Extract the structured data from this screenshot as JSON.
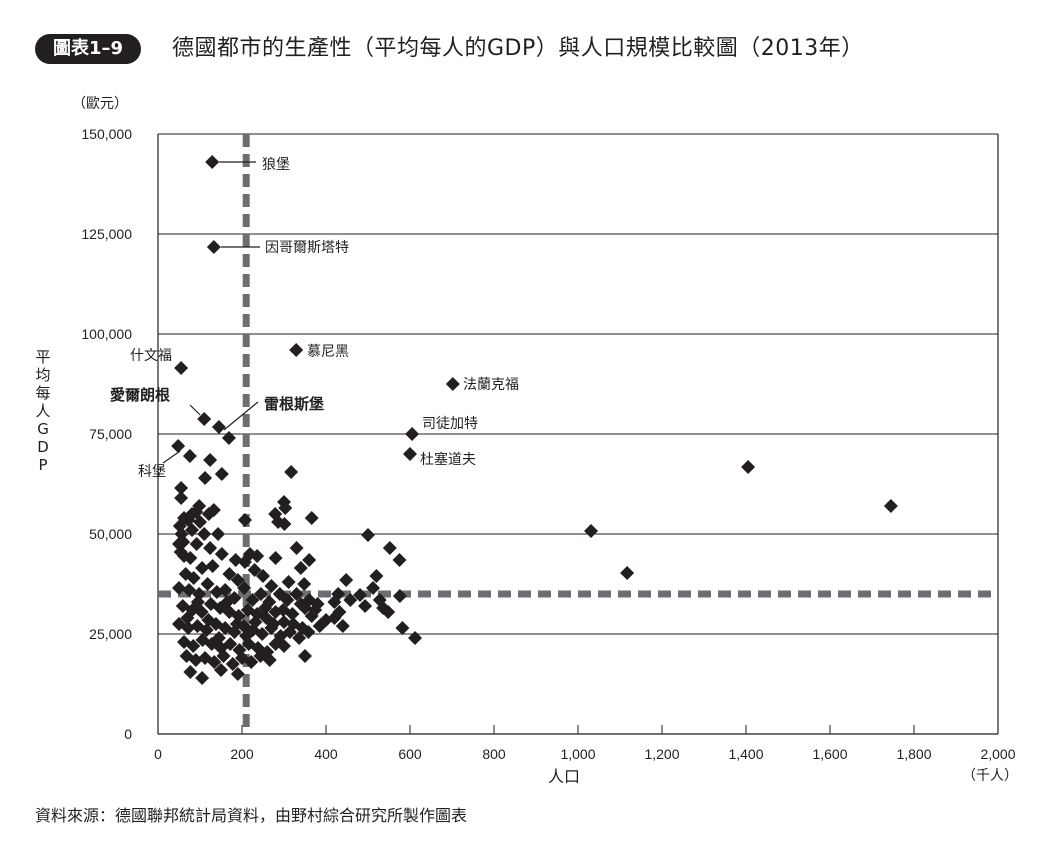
{
  "header": {
    "badge": "圖表1–9",
    "title": "德國都市的生產性（平均每人的GDP）與人口規模比較圖（2013年）"
  },
  "axes": {
    "y_unit": "（歐元）",
    "y_label": "平均每人GDP",
    "x_label": "人口",
    "x_unit": "（千人）"
  },
  "footer": {
    "source": "資料來源：德國聯邦統計局資料，由野村綜合研究所製作圖表"
  },
  "chart_data": {
    "type": "scatter",
    "title": "德國都市的生產性（平均每人的GDP）與人口規模比較圖（2013年）",
    "xlabel": "人口（千人）",
    "ylabel": "平均每人GDP（歐元）",
    "xlim": [
      0,
      2000
    ],
    "ylim": [
      0,
      150000
    ],
    "x_ticks": [
      0,
      200,
      400,
      600,
      800,
      1000,
      1200,
      1400,
      1600,
      1800,
      2000
    ],
    "x_tick_labels": [
      "0",
      "200",
      "400",
      "600",
      "800",
      "1,000",
      "1,200",
      "1,400",
      "1,600",
      "1,800",
      "2,000"
    ],
    "y_ticks": [
      0,
      25000,
      50000,
      75000,
      100000,
      125000,
      150000
    ],
    "y_tick_labels": [
      "0",
      "25,000",
      "50,000",
      "75,000",
      "100,000",
      "125,000",
      "150,000"
    ],
    "grid": "horizontal",
    "reference_lines": {
      "x": 210,
      "y": 35000,
      "style": "dashed",
      "color": "#6d6e71"
    },
    "marker": "diamond",
    "marker_color": "#231f20",
    "labeled_points": [
      {
        "name": "狼堡",
        "x": 129,
        "y": 143000,
        "bold": false
      },
      {
        "name": "因哥爾斯塔特",
        "x": 133,
        "y": 121750,
        "bold": false
      },
      {
        "name": "慕尼黑",
        "x": 329,
        "y": 96000,
        "bold": false
      },
      {
        "name": "什文福",
        "x": 55,
        "y": 91500,
        "bold": false
      },
      {
        "name": "法蘭克福",
        "x": 702,
        "y": 87500,
        "bold": false
      },
      {
        "name": "愛爾朗根",
        "x": 110,
        "y": 78750,
        "bold": true
      },
      {
        "name": "雷根斯堡",
        "x": 145,
        "y": 76750,
        "bold": true
      },
      {
        "name": "司徒加特",
        "x": 605,
        "y": 75000,
        "bold": false
      },
      {
        "name": "科堡",
        "x": 48,
        "y": 72000,
        "bold": false
      },
      {
        "name": "杜塞道夫",
        "x": 600,
        "y": 70000,
        "bold": false
      }
    ],
    "points": [
      [
        1031,
        50750
      ],
      [
        1117,
        40250
      ],
      [
        1405,
        66750
      ],
      [
        1745,
        57000
      ],
      [
        169,
        74000
      ],
      [
        76,
        69500
      ],
      [
        124,
        68500
      ],
      [
        152,
        65000
      ],
      [
        317,
        65500
      ],
      [
        112,
        64000
      ],
      [
        55,
        61500
      ],
      [
        55,
        59000
      ],
      [
        98,
        57000
      ],
      [
        133,
        56000
      ],
      [
        279,
        55000
      ],
      [
        366,
        54000
      ],
      [
        62,
        54000
      ],
      [
        52,
        52000
      ],
      [
        72,
        53500
      ],
      [
        207,
        53500
      ],
      [
        300,
        58000
      ],
      [
        303,
        56500
      ],
      [
        301,
        52500
      ],
      [
        286,
        53000
      ],
      [
        121,
        55000
      ],
      [
        100,
        53000
      ],
      [
        91,
        55500
      ],
      [
        81,
        55000
      ],
      [
        56,
        50000
      ],
      [
        60,
        48000
      ],
      [
        50,
        47500
      ],
      [
        54,
        45500
      ],
      [
        62,
        44500
      ],
      [
        77,
        44000
      ],
      [
        81,
        51000
      ],
      [
        110,
        50000
      ],
      [
        143,
        50000
      ],
      [
        92,
        47500
      ],
      [
        124,
        46500
      ],
      [
        152,
        45000
      ],
      [
        185,
        43500
      ],
      [
        207,
        43000
      ],
      [
        219,
        45000
      ],
      [
        236,
        44500
      ],
      [
        330,
        46500
      ],
      [
        500,
        49750
      ],
      [
        552,
        46500
      ],
      [
        575,
        43500
      ],
      [
        280,
        44000
      ],
      [
        340,
        41500
      ],
      [
        311,
        38000
      ],
      [
        348,
        37500
      ],
      [
        360,
        43500
      ],
      [
        66,
        40000
      ],
      [
        85,
        39000
      ],
      [
        105,
        41500
      ],
      [
        130,
        42000
      ],
      [
        170,
        40000
      ],
      [
        190,
        38500
      ],
      [
        230,
        41000
      ],
      [
        250,
        39500
      ],
      [
        270,
        37000
      ],
      [
        50,
        36500
      ],
      [
        74,
        36000
      ],
      [
        98,
        35000
      ],
      [
        118,
        37500
      ],
      [
        140,
        35500
      ],
      [
        160,
        36000
      ],
      [
        182,
        34000
      ],
      [
        205,
        36500
      ],
      [
        225,
        33500
      ],
      [
        245,
        35000
      ],
      [
        265,
        33000
      ],
      [
        290,
        35000
      ],
      [
        308,
        33500
      ],
      [
        330,
        35000
      ],
      [
        350,
        31500
      ],
      [
        374,
        31000
      ],
      [
        390,
        27500
      ],
      [
        429,
        35000
      ],
      [
        448,
        38500
      ],
      [
        432,
        30500
      ],
      [
        420,
        33000
      ],
      [
        440,
        27000
      ],
      [
        458,
        33500
      ],
      [
        481,
        34750
      ],
      [
        493,
        32000
      ],
      [
        520,
        39500
      ],
      [
        512,
        36500
      ],
      [
        528,
        33500
      ],
      [
        536,
        31500
      ],
      [
        548,
        30500
      ],
      [
        576,
        34500
      ],
      [
        582,
        26500
      ],
      [
        612,
        24000
      ],
      [
        59,
        32000
      ],
      [
        82,
        31000
      ],
      [
        104,
        30500
      ],
      [
        126,
        32500
      ],
      [
        148,
        31500
      ],
      [
        170,
        30500
      ],
      [
        192,
        29500
      ],
      [
        214,
        31000
      ],
      [
        236,
        30000
      ],
      [
        258,
        29000
      ],
      [
        280,
        30500
      ],
      [
        300,
        28000
      ],
      [
        322,
        27500
      ],
      [
        344,
        26500
      ],
      [
        366,
        29500
      ],
      [
        385,
        27000
      ],
      [
        50,
        27500
      ],
      [
        72,
        26500
      ],
      [
        94,
        27000
      ],
      [
        116,
        26000
      ],
      [
        138,
        27500
      ],
      [
        160,
        26500
      ],
      [
        182,
        25500
      ],
      [
        204,
        27000
      ],
      [
        226,
        26000
      ],
      [
        248,
        25000
      ],
      [
        270,
        26500
      ],
      [
        292,
        24500
      ],
      [
        314,
        25500
      ],
      [
        336,
        24000
      ],
      [
        358,
        25500
      ],
      [
        280,
        22500
      ],
      [
        62,
        23000
      ],
      [
        84,
        22000
      ],
      [
        106,
        23500
      ],
      [
        128,
        22500
      ],
      [
        150,
        21500
      ],
      [
        172,
        22500
      ],
      [
        194,
        21000
      ],
      [
        216,
        22500
      ],
      [
        238,
        21500
      ],
      [
        260,
        20500
      ],
      [
        300,
        22000
      ],
      [
        350,
        19500
      ],
      [
        68,
        19500
      ],
      [
        90,
        18500
      ],
      [
        112,
        19000
      ],
      [
        134,
        18000
      ],
      [
        156,
        19500
      ],
      [
        178,
        17500
      ],
      [
        200,
        19000
      ],
      [
        222,
        18000
      ],
      [
        244,
        19500
      ],
      [
        266,
        18500
      ],
      [
        77,
        15500
      ],
      [
        105,
        14000
      ],
      [
        150,
        16000
      ],
      [
        190,
        15000
      ],
      [
        70,
        29000
      ],
      [
        95,
        33000
      ],
      [
        120,
        28500
      ],
      [
        145,
        24000
      ],
      [
        165,
        33000
      ],
      [
        188,
        27500
      ],
      [
        210,
        24500
      ],
      [
        232,
        28000
      ],
      [
        255,
        31500
      ],
      [
        275,
        27500
      ],
      [
        298,
        31000
      ],
      [
        320,
        30000
      ],
      [
        340,
        32500
      ],
      [
        360,
        33500
      ],
      [
        380,
        32500
      ],
      [
        400,
        28500
      ],
      [
        420,
        29000
      ]
    ]
  }
}
